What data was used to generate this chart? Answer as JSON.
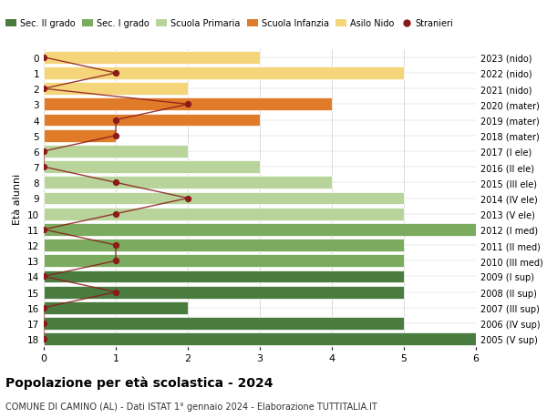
{
  "ages": [
    18,
    17,
    16,
    15,
    14,
    13,
    12,
    11,
    10,
    9,
    8,
    7,
    6,
    5,
    4,
    3,
    2,
    1,
    0
  ],
  "years": [
    "2005 (V sup)",
    "2006 (IV sup)",
    "2007 (III sup)",
    "2008 (II sup)",
    "2009 (I sup)",
    "2010 (III med)",
    "2011 (II med)",
    "2012 (I med)",
    "2013 (V ele)",
    "2014 (IV ele)",
    "2015 (III ele)",
    "2016 (II ele)",
    "2017 (I ele)",
    "2018 (mater)",
    "2019 (mater)",
    "2020 (mater)",
    "2021 (nido)",
    "2022 (nido)",
    "2023 (nido)"
  ],
  "bar_values": [
    6,
    5,
    2,
    5,
    5,
    5,
    5,
    6,
    5,
    5,
    4,
    3,
    2,
    1,
    3,
    4,
    2,
    5,
    3
  ],
  "bar_colors": [
    "#4a7c3f",
    "#4a7c3f",
    "#4a7c3f",
    "#4a7c3f",
    "#4a7c3f",
    "#7aab5e",
    "#7aab5e",
    "#7aab5e",
    "#b8d49a",
    "#b8d49a",
    "#b8d49a",
    "#b8d49a",
    "#b8d49a",
    "#e07b2a",
    "#e07b2a",
    "#e07b2a",
    "#f5d57a",
    "#f5d57a",
    "#f5d57a"
  ],
  "stranieri_values": [
    0,
    0,
    0,
    1,
    0,
    1,
    1,
    0,
    1,
    2,
    1,
    0,
    0,
    1,
    1,
    2,
    0,
    1,
    0
  ],
  "stranieri_color": "#8b1a1a",
  "title_bold": "Popolazione per età scolastica - 2024",
  "subtitle": "COMUNE DI CAMINO (AL) - Dati ISTAT 1° gennaio 2024 - Elaborazione TUTTITALIA.IT",
  "ylabel": "Età alunni",
  "xlabel_vals": [
    0,
    1,
    2,
    3,
    4,
    5,
    6
  ],
  "xlim": [
    0,
    6
  ],
  "legend_labels": [
    "Sec. II grado",
    "Sec. I grado",
    "Scuola Primaria",
    "Scuola Infanzia",
    "Asilo Nido",
    "Stranieri"
  ],
  "legend_colors": [
    "#4a7c3f",
    "#7aab5e",
    "#b8d49a",
    "#e07b2a",
    "#f5d57a",
    "#8b1a1a"
  ],
  "bg_color": "#ffffff",
  "bar_height": 0.8,
  "grid_color": "#cccccc"
}
